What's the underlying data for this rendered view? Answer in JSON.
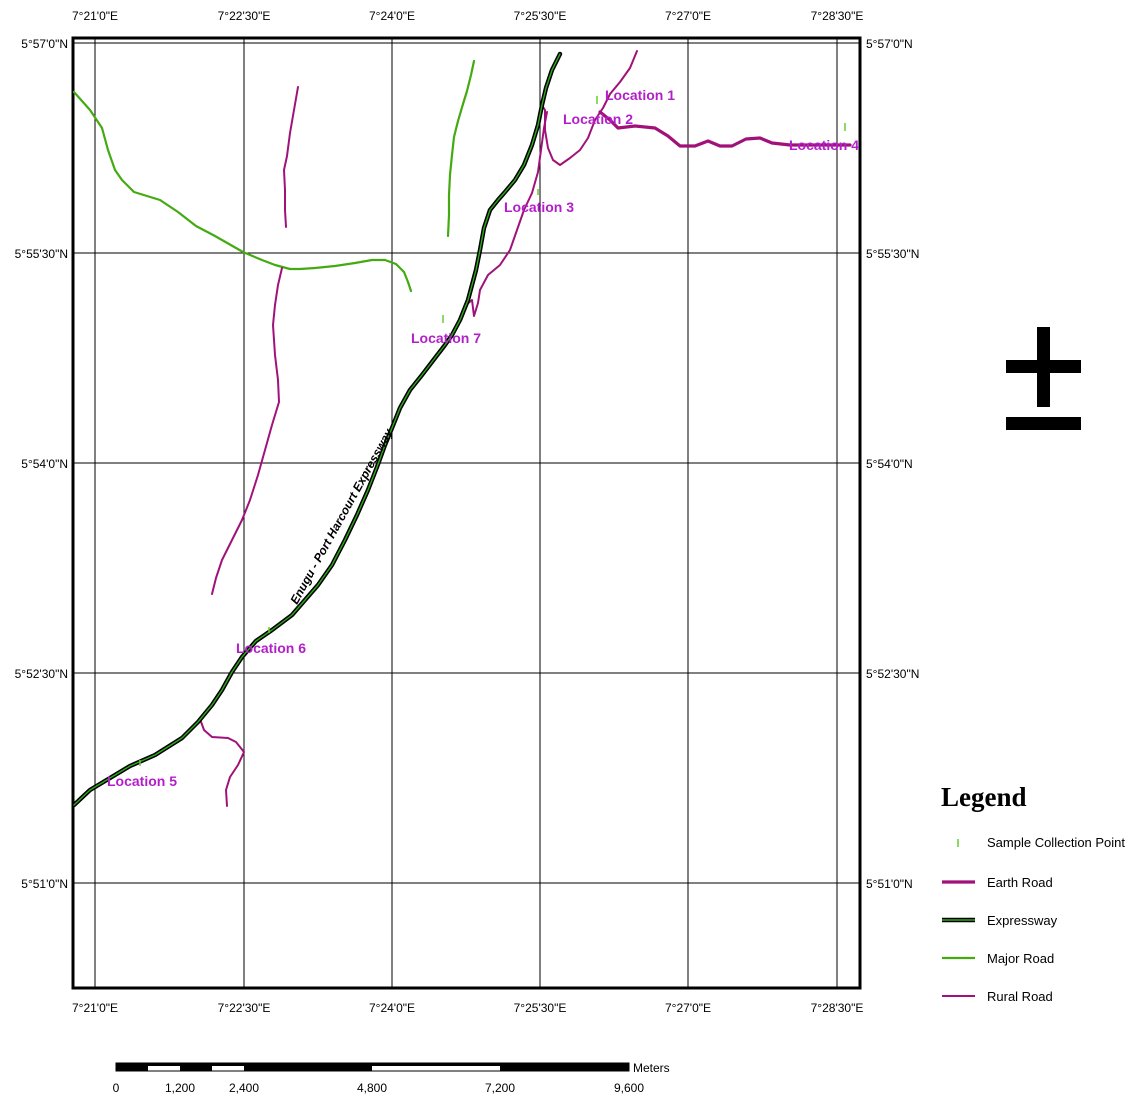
{
  "map": {
    "top_lon_ticks": [
      "7°21'0\"E",
      "7°22'30\"E",
      "7°24'0\"E",
      "7°25'30\"E",
      "7°27'0\"E",
      "7°28'30\"E"
    ],
    "bottom_lon_ticks": [
      "7°21'0\"E",
      "7°22'30\"E",
      "7°24'0\"E",
      "7°25'30\"E",
      "7°27'0\"E",
      "7°28'30\"E"
    ],
    "left_lat_ticks": [
      "5°57'0\"N",
      "5°55'30\"N",
      "5°54'0\"N",
      "5°52'30\"N",
      "5°51'0\"N"
    ],
    "right_lat_ticks": [
      "5°57'0\"N",
      "5°55'30\"N",
      "5°54'0\"N",
      "5°52'30\"N",
      "5°51'0\"N"
    ],
    "road_label": "Enugu - Port Harcourt Expressway",
    "locations": [
      {
        "label": "Location 1"
      },
      {
        "label": "Location 2"
      },
      {
        "label": "Location 3"
      },
      {
        "label": "Location 4"
      },
      {
        "label": "Location 5"
      },
      {
        "label": "Location 6"
      },
      {
        "label": "Location 7"
      }
    ]
  },
  "legend": {
    "title": "Legend",
    "items": [
      {
        "label": "Sample Collection Point",
        "color": "#44bb22"
      },
      {
        "label": "Earth Road",
        "color": "#a0127a"
      },
      {
        "label": "Expressway",
        "color": "#1a6e10"
      },
      {
        "label": "Major Road",
        "color": "#44aa11"
      },
      {
        "label": "Rural Road",
        "color": "#a0127a"
      }
    ]
  },
  "scale": {
    "unit": "Meters",
    "labels": [
      "0",
      "1,200",
      "2,400",
      "4,800",
      "7,200",
      "9,600"
    ]
  },
  "colors": {
    "earth_road": "#a0127a",
    "rural_road": "#a0127a",
    "major_road": "#44aa11",
    "expressway_edge": "#000000",
    "expressway_center": "#2fa81e",
    "location_label": "#b21fc9",
    "sample_point": "#66cc33"
  },
  "north_arrow": {
    "icon": "plus-minus-north-arrow-icon"
  }
}
